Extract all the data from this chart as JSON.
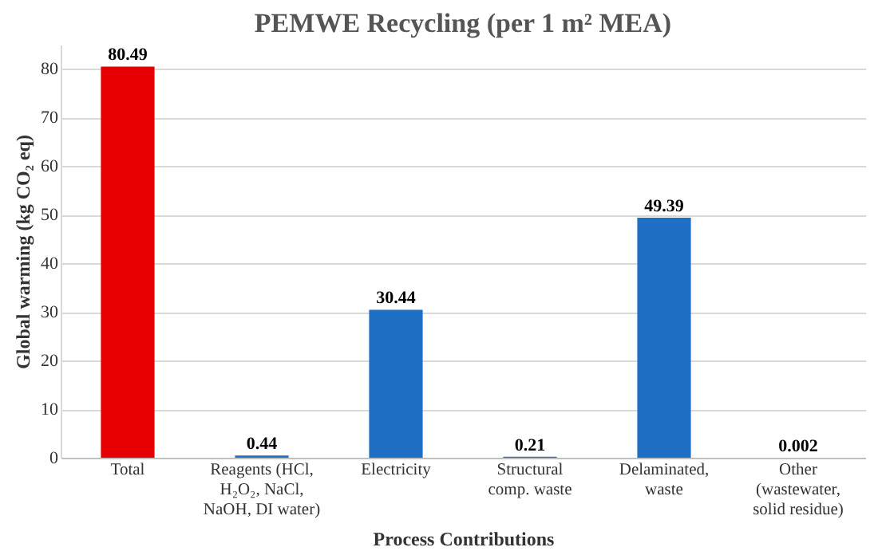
{
  "chart_data": {
    "type": "bar",
    "title": "PEMWE Recycling (per 1 m² MEA)",
    "xlabel": "Process Contributions",
    "ylabel": "Global warming (kg CO₂ eq)",
    "categories": [
      "Total",
      "Reagents (HCl, H₂O₂, NaCl, NaOH, DI water)",
      "Electricity",
      "Structural comp. waste",
      "Delaminated, waste",
      "Other (wastewater, solid residue)"
    ],
    "values": [
      80.49,
      0.44,
      30.44,
      0.21,
      49.39,
      0.002
    ],
    "colors": [
      "#e60000",
      "#1f6fc5",
      "#1f6fc5",
      "#1f6fc5",
      "#1f6fc5",
      "#1f6fc5"
    ],
    "ylim": [
      0,
      85
    ],
    "yticks": [
      0,
      10,
      20,
      30,
      40,
      50,
      60,
      70,
      80
    ],
    "grid": "y",
    "data_labels": true
  }
}
